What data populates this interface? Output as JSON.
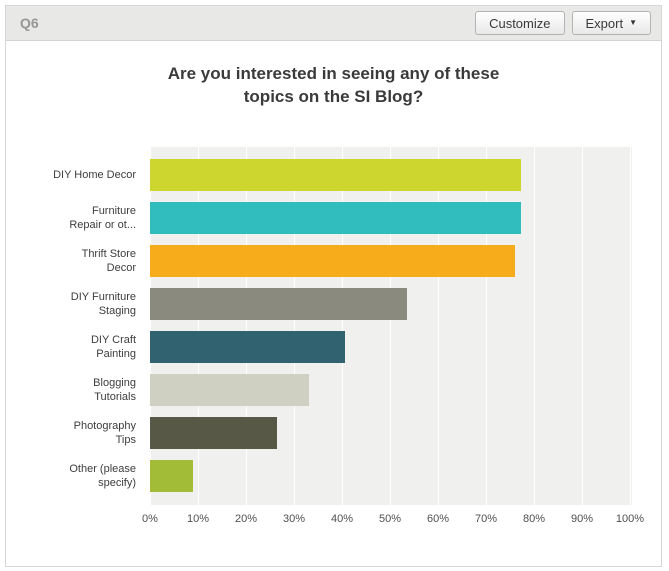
{
  "header": {
    "question_number": "Q6",
    "customize_label": "Customize",
    "export_label": "Export"
  },
  "chart_data": {
    "type": "bar",
    "orientation": "horizontal",
    "title": "Are you interested in seeing any of these topics on the SI Blog?",
    "title_lines": [
      "Are you interested in seeing any of these",
      "topics on the SI Blog?"
    ],
    "categories": [
      "DIY Home Decor",
      "Furniture\nRepair or ot...",
      "Thrift Store\nDecor",
      "DIY Furniture\nStaging",
      "DIY Craft\nPainting",
      "Blogging\nTutorials",
      "Photography\nTips",
      "Other (please\nspecify)"
    ],
    "values": [
      77.3,
      77.3,
      76.0,
      53.5,
      40.6,
      33.1,
      26.5,
      9.0
    ],
    "unit": "%",
    "colors": [
      "#ccd62e",
      "#31bcbe",
      "#f7ad1b",
      "#8a8a7e",
      "#31626f",
      "#cfcfc2",
      "#585847",
      "#a2bc38"
    ],
    "x_ticks": [
      "0%",
      "10%",
      "20%",
      "30%",
      "40%",
      "50%",
      "60%",
      "70%",
      "80%",
      "90%",
      "100%"
    ],
    "xlim": [
      0,
      100
    ],
    "xlabel": "",
    "ylabel": "",
    "grid": true,
    "legend": false,
    "plot_background": "#f0f0ee",
    "gridline_color": "#ffffff"
  }
}
